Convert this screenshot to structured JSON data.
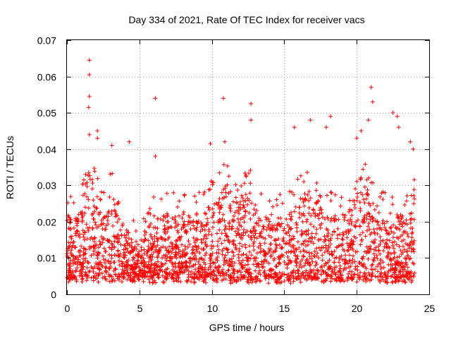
{
  "chart_data": {
    "type": "scatter",
    "title": "Day 334 of 2021, Rate Of TEC Index for receiver vacs",
    "xlabel": "GPS time / hours",
    "ylabel": "ROTI / TECUs",
    "xlim": [
      0,
      25
    ],
    "ylim": [
      0,
      0.07
    ],
    "xticks": [
      0,
      5,
      10,
      15,
      20,
      25
    ],
    "xtick_labels": [
      "0",
      "5",
      "10",
      "15",
      "20",
      "25"
    ],
    "yticks": [
      0,
      0.01,
      0.02,
      0.03,
      0.04,
      0.05,
      0.06,
      0.07
    ],
    "ytick_labels": [
      "0",
      "0.01",
      "0.02",
      "0.03",
      "0.04",
      "0.05",
      "0.06",
      "0.07"
    ],
    "grid": true,
    "marker": "plus",
    "color": "#ff0000",
    "series": [
      {
        "name": "ROTI",
        "x_range": [
          0,
          24
        ],
        "typical_band": [
          0.003,
          0.03
        ],
        "notable_points": [
          [
            1.55,
            0.0645
          ],
          [
            1.55,
            0.0605
          ],
          [
            1.55,
            0.0545
          ],
          [
            1.5,
            0.0515
          ],
          [
            1.55,
            0.044
          ],
          [
            2.1,
            0.045
          ],
          [
            2.1,
            0.043
          ],
          [
            3.1,
            0.041
          ],
          [
            4.3,
            0.042
          ],
          [
            6.1,
            0.054
          ],
          [
            6.1,
            0.038
          ],
          [
            9.9,
            0.0415
          ],
          [
            10.8,
            0.054
          ],
          [
            10.9,
            0.042
          ],
          [
            12.7,
            0.0525
          ],
          [
            12.7,
            0.048
          ],
          [
            15.7,
            0.046
          ],
          [
            16.8,
            0.048
          ],
          [
            17.9,
            0.046
          ],
          [
            18.2,
            0.049
          ],
          [
            20.0,
            0.043
          ],
          [
            20.3,
            0.045
          ],
          [
            20.8,
            0.048
          ],
          [
            21.0,
            0.057
          ],
          [
            21.1,
            0.053
          ],
          [
            22.5,
            0.05
          ],
          [
            22.8,
            0.049
          ],
          [
            22.9,
            0.046
          ],
          [
            23.7,
            0.042
          ],
          [
            23.9,
            0.04
          ]
        ]
      }
    ]
  }
}
